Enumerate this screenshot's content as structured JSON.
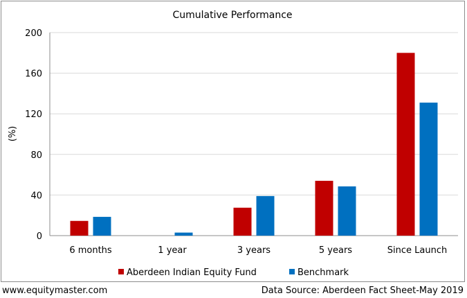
{
  "chart_data": {
    "type": "bar",
    "title": "Cumulative Performance",
    "xlabel": "",
    "ylabel": "(%)",
    "categories": [
      "6 months",
      "1 year",
      "3 years",
      "5 years",
      "Since Launch"
    ],
    "series": [
      {
        "name": "Aberdeen Indian Equity Fund",
        "color": "#c00000",
        "values": [
          14.5,
          0,
          27.5,
          54,
          180
        ]
      },
      {
        "name": "Benchmark",
        "color": "#0070c0",
        "values": [
          18.5,
          3,
          39,
          48.5,
          131
        ]
      }
    ],
    "ylim": [
      0,
      200
    ],
    "yticks": [
      0,
      40,
      80,
      120,
      160,
      200
    ],
    "grid": true,
    "legend_position": "bottom"
  },
  "footer": {
    "source_site": "www.equitymaster.com",
    "data_source": "Data Source: Aberdeen Fact Sheet-May 2019"
  }
}
